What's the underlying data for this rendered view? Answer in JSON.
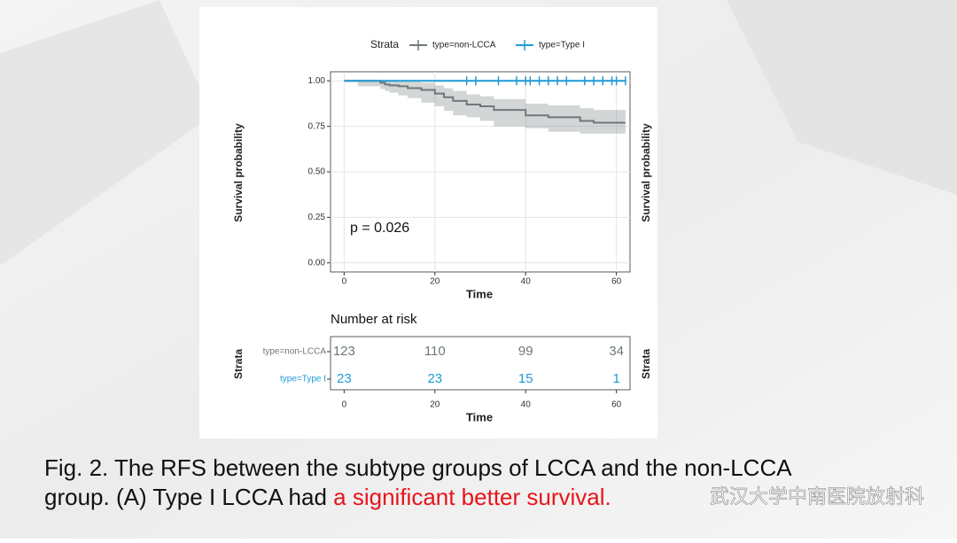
{
  "chart_data": {
    "type": "step",
    "legend_title": "Strata",
    "xlabel": "Time",
    "ylabel": "Survival probability",
    "annotation": "p = 0.026",
    "xlim": [
      -3,
      63
    ],
    "xticks": [
      0,
      20,
      40,
      60
    ],
    "ylim": [
      -0.05,
      1.05
    ],
    "yticks": [
      {
        "value": 0,
        "label": "0.00"
      },
      {
        "value": 0.25,
        "label": "0.25"
      },
      {
        "value": 0.5,
        "label": "0.50"
      },
      {
        "value": 0.75,
        "label": "0.75"
      },
      {
        "value": 1,
        "label": "1.00"
      }
    ],
    "grid": true,
    "series": [
      {
        "name": "type=non-LCCA",
        "color": "#6e7878",
        "x": [
          0,
          3,
          8,
          9,
          10,
          12,
          14,
          17,
          20,
          22,
          24,
          27,
          30,
          33,
          40,
          45,
          52,
          55,
          62
        ],
        "values": [
          1,
          1,
          0.99,
          0.98,
          0.975,
          0.97,
          0.96,
          0.95,
          0.93,
          0.91,
          0.89,
          0.87,
          0.86,
          0.84,
          0.81,
          0.8,
          0.78,
          0.77,
          0.77
        ],
        "lower": [
          1,
          1,
          0.97,
          0.955,
          0.945,
          0.935,
          0.92,
          0.905,
          0.88,
          0.86,
          0.835,
          0.81,
          0.8,
          0.78,
          0.75,
          0.74,
          0.72,
          0.71,
          0.71
        ],
        "upper": [
          1,
          1,
          1,
          1,
          1,
          1,
          0.995,
          0.99,
          0.975,
          0.96,
          0.945,
          0.925,
          0.915,
          0.9,
          0.875,
          0.865,
          0.85,
          0.84,
          0.84
        ]
      },
      {
        "name": "type=Type I",
        "color": "#1f9ad6",
        "x": [
          0,
          62
        ],
        "values": [
          1,
          1
        ],
        "censor_x": [
          27,
          29,
          34,
          38,
          40,
          41,
          43,
          45,
          47,
          49,
          53,
          55,
          57,
          59,
          60,
          62
        ]
      }
    ],
    "risk_table": {
      "title": "Number at risk",
      "ylabel": "Strata",
      "xlabel": "Time",
      "rows": [
        {
          "name": "type=non-LCCA",
          "color": "#6e7878",
          "values": [
            123,
            110,
            99,
            34
          ]
        },
        {
          "name": "type=Type I",
          "color": "#1f9ad6",
          "values": [
            23,
            23,
            15,
            1
          ]
        }
      ]
    }
  },
  "caption": {
    "line1": "Fig. 2. The RFS between the subtype groups of LCCA and the non-LCCA",
    "line2": "group.  (A) Type I LCCA had ",
    "highlight": "a significant better survival."
  },
  "watermark": "武汉大学中南医院放射科"
}
